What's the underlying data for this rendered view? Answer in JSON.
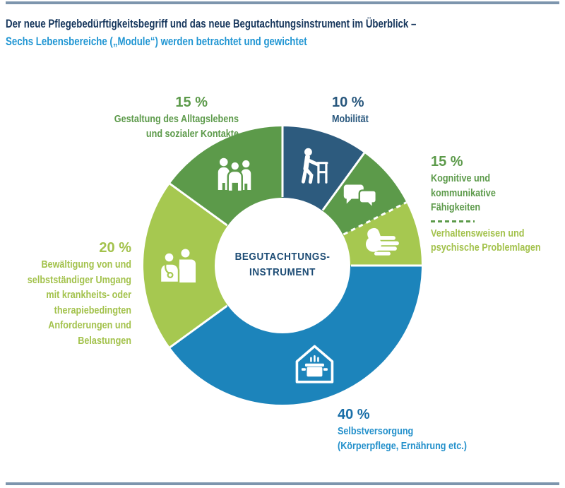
{
  "header": {
    "title_line1": "Der neue Pflegebedürftigkeitsbegriff und das neue Begutachtungsinstrument im Überblick –",
    "title_line2": "Sechs Lebensbereiche („Module“) werden betrachtet und gewichtet"
  },
  "colors": {
    "title_navy": "#16365c",
    "title_blue": "#2196d3",
    "rule_steel_blue": "#7d95ad",
    "segment_dark_blue": "#2d5b7e",
    "segment_blue": "#1c84bb",
    "segment_green": "#5c9a4a",
    "segment_lime": "#a6c850",
    "center_label_navy": "#1c4b74",
    "label_green": "#5c9a4a",
    "label_lime": "#a3c24c",
    "label_dark_blue": "#27567c",
    "label_blue": "#2390cb"
  },
  "chart_data": {
    "type": "pie",
    "subtype": "donut",
    "units": "%",
    "direction": "clockwise-from-12-oclock",
    "title": "Sechs Lebensbereiche („Module“) werden betrachtet und gewichtet",
    "center_label_lines": [
      "BEGUTACHTUNGS-",
      "INSTRUMENT"
    ],
    "total_pct": 100,
    "segments": [
      {
        "slug": "mobilitaet",
        "label": "Mobilität",
        "weight_pct": 10,
        "arc_pct": 10,
        "color": "#2d5b7e",
        "icon": "person-with-walker-icon"
      },
      {
        "slug": "kognitive-faehigkeiten",
        "label": "Kognitive und kommunikative Fähigkeiten",
        "weight_pct": 15,
        "arc_pct": 7.5,
        "color": "#5c9a4a",
        "icon": "speech-bubbles-icon",
        "separator_after": "dashed",
        "note": "teilt sich 15 % mit Verhaltensweisen und psychische Problemlagen (gestrichelte Trennlinie)"
      },
      {
        "slug": "verhaltensweisen",
        "label": "Verhaltensweisen und psychische Problemlagen",
        "weight_pct": 15,
        "arc_pct": 7.5,
        "color": "#a6c850",
        "icon": "open-hand-icon"
      },
      {
        "slug": "selbstversorgung",
        "label": "Selbstversorgung (Körperpflege, Ernährung etc.)",
        "weight_pct": 40,
        "arc_pct": 40,
        "color": "#1c84bb",
        "icon": "house-cooking-pot-icon"
      },
      {
        "slug": "bewaeltigung",
        "label": "Bewältigung von und selbstständiger Umgang mit krankheits- oder therapiebedingten Anforderungen und Belastungen",
        "weight_pct": 20,
        "arc_pct": 20,
        "color": "#a6c850",
        "icon": "doctor-patient-icon"
      },
      {
        "slug": "gestaltung-alltagsleben",
        "label": "Gestaltung des Alltagslebens und sozialer Kontakte",
        "weight_pct": 15,
        "arc_pct": 15,
        "color": "#5c9a4a",
        "icon": "people-group-icon"
      }
    ]
  },
  "callouts": {
    "gestaltung": {
      "pct": "15 %",
      "lines": [
        "Gestaltung des Alltagslebens",
        "und sozialer Kontakte"
      ]
    },
    "mobilitaet": {
      "pct": "10 %",
      "lines": [
        "Mobilität"
      ]
    },
    "kognitive": {
      "pct": "15 %",
      "lines": [
        "Kognitive und kommunikative",
        "Fähigkeiten"
      ],
      "lines2": [
        "Verhaltensweisen und",
        "psychische Problemlagen"
      ]
    },
    "bewaeltigung": {
      "pct": "20 %",
      "lines": [
        "Bewältigung von und",
        "selbstständiger Umgang",
        "mit krankheits- oder",
        "therapiebedingten",
        "Anforderungen und",
        "Belastungen"
      ]
    },
    "selbstversorgung": {
      "pct": "40 %",
      "lines": [
        "Selbstversorgung",
        "(Körperpflege, Ernährung etc.)"
      ]
    }
  }
}
